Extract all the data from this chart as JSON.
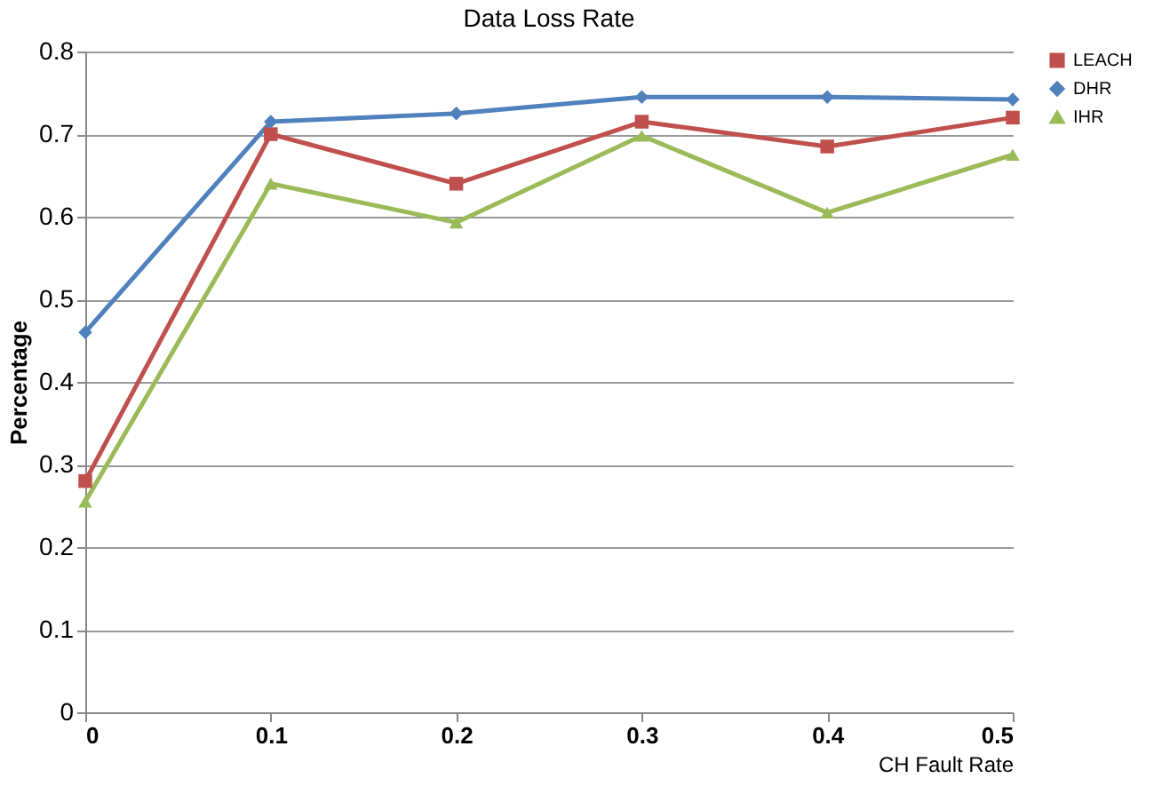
{
  "chart_data": {
    "type": "line",
    "title": "Data Loss Rate",
    "xlabel": "CH Fault Rate",
    "ylabel": "Percentage",
    "x": [
      0,
      0.1,
      0.2,
      0.3,
      0.4,
      0.5
    ],
    "series": [
      {
        "name": "LEACH",
        "color": "#c0504d",
        "marker": "square",
        "values": [
          0.28,
          0.7,
          0.64,
          0.715,
          0.685,
          0.72
        ]
      },
      {
        "name": "DHR",
        "color": "#4f81bd",
        "marker": "diamond",
        "values": [
          0.46,
          0.715,
          0.725,
          0.745,
          0.745,
          0.742
        ]
      },
      {
        "name": "IHR",
        "color": "#9bbb59",
        "marker": "triangle",
        "values": [
          0.255,
          0.64,
          0.593,
          0.698,
          0.605,
          0.675
        ]
      }
    ],
    "xlim": [
      0,
      0.5
    ],
    "xticks": [
      0,
      0.1,
      0.2,
      0.3,
      0.4,
      0.5
    ],
    "ylim": [
      0,
      0.8
    ],
    "yticks": [
      0,
      0.1,
      0.2,
      0.3,
      0.4,
      0.5,
      0.6,
      0.7,
      0.8
    ],
    "grid": "y",
    "legend": "right",
    "line_style": "solid"
  }
}
